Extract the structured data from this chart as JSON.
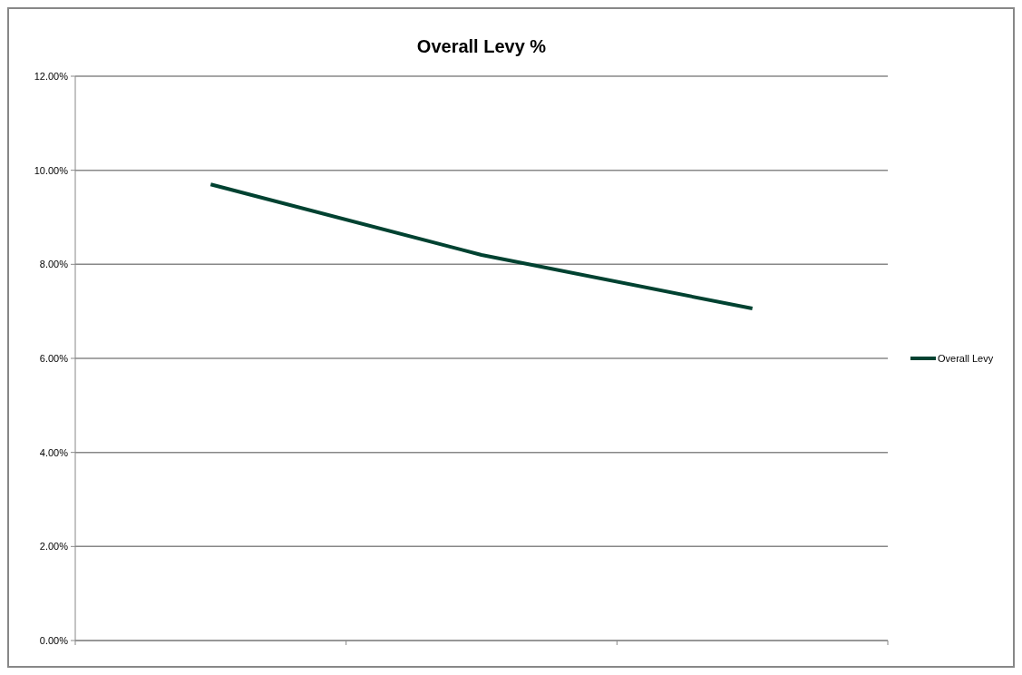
{
  "chart_data": {
    "type": "line",
    "title": "Overall Levy %",
    "categories": [
      null,
      null,
      null
    ],
    "series": [
      {
        "name": "Overall Levy",
        "color": "#004231",
        "values": [
          9.7,
          8.2,
          7.06
        ]
      }
    ],
    "ylim": [
      0,
      12
    ],
    "yticks": [
      {
        "value": 0,
        "label": "0.00%"
      },
      {
        "value": 2,
        "label": "2.00%"
      },
      {
        "value": 4,
        "label": "4.00%"
      },
      {
        "value": 6,
        "label": "6.00%"
      },
      {
        "value": 8,
        "label": "8.00%"
      },
      {
        "value": 10,
        "label": "10.00%"
      },
      {
        "value": 12,
        "label": "12.00%"
      }
    ],
    "grid": "y",
    "legend": "right",
    "marker": "none"
  }
}
